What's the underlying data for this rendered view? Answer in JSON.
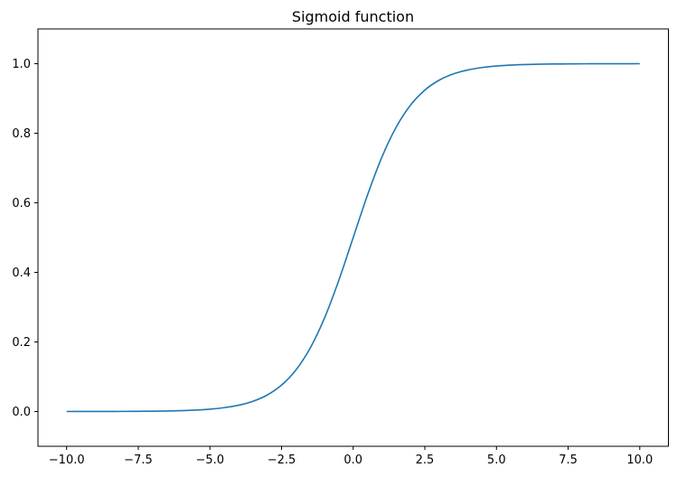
{
  "chart_data": {
    "type": "line",
    "title": "Sigmoid function",
    "xlabel": "",
    "ylabel": "",
    "xlim": [
      -11,
      11
    ],
    "ylim": [
      -0.1,
      1.1
    ],
    "xticks": [
      -10.0,
      -7.5,
      -5.0,
      -2.5,
      0.0,
      2.5,
      5.0,
      7.5,
      10.0
    ],
    "xtick_labels": [
      "−10.0",
      "−7.5",
      "−5.0",
      "−2.5",
      "0.0",
      "2.5",
      "5.0",
      "7.5",
      "10.0"
    ],
    "yticks": [
      0.0,
      0.2,
      0.4,
      0.6,
      0.8,
      1.0
    ],
    "ytick_labels": [
      "0.0",
      "0.2",
      "0.4",
      "0.6",
      "0.8",
      "1.0"
    ],
    "grid": false,
    "colors": {
      "line": "#1f77b4"
    },
    "series": [
      {
        "x": [
          -10,
          -9.5,
          -9,
          -8.5,
          -8,
          -7.5,
          -7,
          -6.5,
          -6,
          -5.5,
          -5,
          -4.5,
          -4,
          -3.5,
          -3,
          -2.5,
          -2,
          -1.5,
          -1,
          -0.5,
          0,
          0.5,
          1,
          1.5,
          2,
          2.5,
          3,
          3.5,
          4,
          4.5,
          5,
          5.5,
          6,
          6.5,
          7,
          7.5,
          8,
          8.5,
          9,
          9.5,
          10
        ],
        "y": [
          0.0,
          0.0001,
          0.0001,
          0.0002,
          0.0003,
          0.0006,
          0.0009,
          0.0015,
          0.0025,
          0.0041,
          0.0067,
          0.011,
          0.018,
          0.0293,
          0.0474,
          0.0759,
          0.1192,
          0.1824,
          0.2689,
          0.3775,
          0.5,
          0.6225,
          0.7311,
          0.8176,
          0.8808,
          0.9241,
          0.9526,
          0.9707,
          0.982,
          0.989,
          0.9933,
          0.9959,
          0.9975,
          0.9985,
          0.9991,
          0.9994,
          0.9997,
          0.9998,
          0.9999,
          0.9999,
          1.0
        ]
      }
    ]
  }
}
